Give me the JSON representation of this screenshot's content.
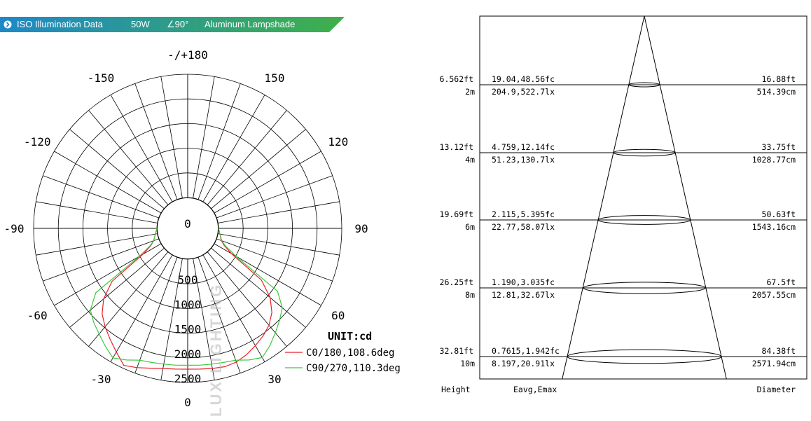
{
  "header": {
    "bullet_icon": "circle-chevron-right-icon",
    "title": "ISO Illumination  Data",
    "power": "50W",
    "angle": "∠90°",
    "lampshade": "Aluminum Lampshade",
    "gradient_from": "#1e88c8",
    "gradient_to": "#3fb049"
  },
  "watermark": "LUX LIGHTING",
  "chart_data": [
    {
      "type": "polar",
      "angle_labels": [
        {
          "label": "-/+180",
          "angle": 180
        },
        {
          "label": "150",
          "angle": 150
        },
        {
          "label": "-150",
          "angle": -150
        },
        {
          "label": "120",
          "angle": 120
        },
        {
          "label": "-120",
          "angle": -120
        },
        {
          "label": "90",
          "angle": 90
        },
        {
          "label": "-90",
          "angle": -90
        },
        {
          "label": "60",
          "angle": 60
        },
        {
          "label": "-60",
          "angle": -60
        },
        {
          "label": "30",
          "angle": 30
        },
        {
          "label": "-30",
          "angle": -30
        },
        {
          "label": "0",
          "angle": 0
        }
      ],
      "radial_ticks": [
        0,
        500,
        1000,
        1500,
        2000,
        2500
      ],
      "rmax": 2500,
      "angular_grid_step_deg": 10,
      "unit_label": "UNIT:cd",
      "legend_placement": "bottom-right",
      "series": [
        {
          "name": "C0/180,108.6deg",
          "color": "#e8202a",
          "points": [
            {
              "angle": -90,
              "r": 0
            },
            {
              "angle": -80,
              "r": 40
            },
            {
              "angle": -70,
              "r": 110
            },
            {
              "angle": -65,
              "r": 200
            },
            {
              "angle": -60,
              "r": 420
            },
            {
              "angle": -55,
              "r": 1250
            },
            {
              "angle": -50,
              "r": 1600
            },
            {
              "angle": -45,
              "r": 1830
            },
            {
              "angle": -40,
              "r": 1980
            },
            {
              "angle": -35,
              "r": 2120
            },
            {
              "angle": -30,
              "r": 2270
            },
            {
              "angle": -25,
              "r": 2440
            },
            {
              "angle": -20,
              "r": 2380
            },
            {
              "angle": -15,
              "r": 2310
            },
            {
              "angle": -10,
              "r": 2260
            },
            {
              "angle": -5,
              "r": 2240
            },
            {
              "angle": 0,
              "r": 2230
            },
            {
              "angle": 5,
              "r": 2240
            },
            {
              "angle": 10,
              "r": 2260
            },
            {
              "angle": 15,
              "r": 2280
            },
            {
              "angle": 20,
              "r": 2260
            },
            {
              "angle": 25,
              "r": 2200
            },
            {
              "angle": 30,
              "r": 2120
            },
            {
              "angle": 35,
              "r": 2040
            },
            {
              "angle": 40,
              "r": 1940
            },
            {
              "angle": 45,
              "r": 1790
            },
            {
              "angle": 50,
              "r": 1560
            },
            {
              "angle": 55,
              "r": 1200
            },
            {
              "angle": 60,
              "r": 400
            },
            {
              "angle": 65,
              "r": 190
            },
            {
              "angle": 70,
              "r": 100
            },
            {
              "angle": 80,
              "r": 40
            },
            {
              "angle": 90,
              "r": 0
            }
          ]
        },
        {
          "name": "C90/270,110.3deg",
          "color": "#3cc93a",
          "points": [
            {
              "angle": -90,
              "r": 0
            },
            {
              "angle": -80,
              "r": 40
            },
            {
              "angle": -70,
              "r": 110
            },
            {
              "angle": -65,
              "r": 220
            },
            {
              "angle": -60,
              "r": 500
            },
            {
              "angle": -55,
              "r": 1650
            },
            {
              "angle": -50,
              "r": 1950
            },
            {
              "angle": -45,
              "r": 2070
            },
            {
              "angle": -40,
              "r": 2170
            },
            {
              "angle": -35,
              "r": 2290
            },
            {
              "angle": -30,
              "r": 2410
            },
            {
              "angle": -25,
              "r": 2320
            },
            {
              "angle": -20,
              "r": 2220
            },
            {
              "angle": -15,
              "r": 2190
            },
            {
              "angle": -10,
              "r": 2170
            },
            {
              "angle": -5,
              "r": 2160
            },
            {
              "angle": 0,
              "r": 2150
            },
            {
              "angle": 5,
              "r": 2160
            },
            {
              "angle": 10,
              "r": 2170
            },
            {
              "angle": 15,
              "r": 2190
            },
            {
              "angle": 20,
              "r": 2220
            },
            {
              "angle": 25,
              "r": 2320
            },
            {
              "angle": 30,
              "r": 2400
            },
            {
              "angle": 35,
              "r": 2280
            },
            {
              "angle": 40,
              "r": 2140
            },
            {
              "angle": 45,
              "r": 2010
            },
            {
              "angle": 50,
              "r": 1880
            },
            {
              "angle": 55,
              "r": 1600
            },
            {
              "angle": 60,
              "r": 500
            },
            {
              "angle": 65,
              "r": 220
            },
            {
              "angle": 70,
              "r": 110
            },
            {
              "angle": 80,
              "r": 40
            },
            {
              "angle": 90,
              "r": 0
            }
          ]
        }
      ]
    },
    {
      "type": "table",
      "columns": [
        "Height",
        "Eavg,Emax",
        "Diameter"
      ],
      "rows": [
        {
          "height_ft": "6.562ft",
          "height_m": "2m",
          "e_fc": "19.04,48.56fc",
          "e_lx": "204.9,522.7lx",
          "d_ft": "16.88ft",
          "d_cm": "514.39cm"
        },
        {
          "height_ft": "13.12ft",
          "height_m": "4m",
          "e_fc": "4.759,12.14fc",
          "e_lx": "51.23,130.7lx",
          "d_ft": "33.75ft",
          "d_cm": "1028.77cm"
        },
        {
          "height_ft": "19.69ft",
          "height_m": "6m",
          "e_fc": "2.115,5.395fc",
          "e_lx": "22.77,58.07lx",
          "d_ft": "50.63ft",
          "d_cm": "1543.16cm"
        },
        {
          "height_ft": "26.25ft",
          "height_m": "8m",
          "e_fc": "1.190,3.035fc",
          "e_lx": "12.81,32.67lx",
          "d_ft": "67.5ft",
          "d_cm": "2057.55cm"
        },
        {
          "height_ft": "32.81ft",
          "height_m": "10m",
          "e_fc": "0.7615,1.942fc",
          "e_lx": "8.197,20.91lx",
          "d_ft": "84.38ft",
          "d_cm": "2571.94cm"
        }
      ]
    }
  ]
}
